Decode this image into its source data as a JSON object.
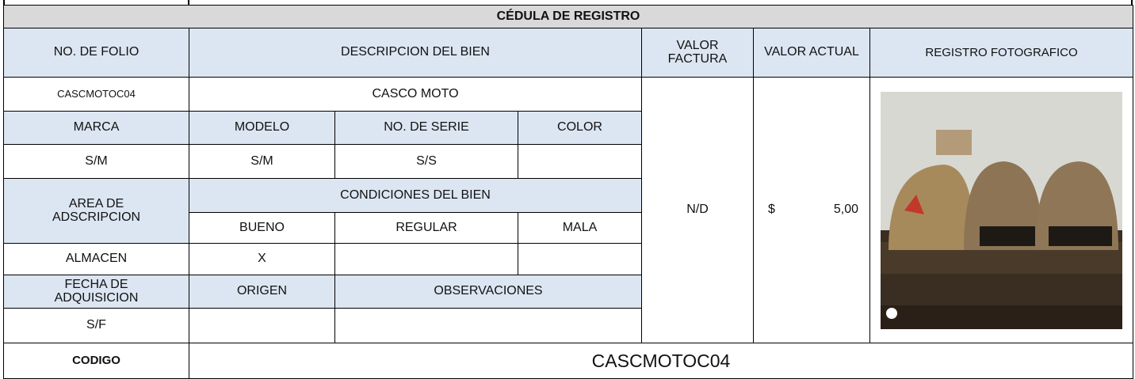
{
  "title": "CÉDULA DE REGISTRO",
  "headers": {
    "folio": "NO. DE FOLIO",
    "descripcion": "DESCRIPCION DEL BIEN",
    "valor_factura": "VALOR FACTURA",
    "valor_actual": "VALOR ACTUAL",
    "registro": "REGISTRO FOTOGRAFICO"
  },
  "item": {
    "folio": "CASCMOTOC04",
    "descripcion": "CASCO MOTO",
    "valor_factura": "N/D",
    "currency": "$",
    "valor_actual": "5,00"
  },
  "labels": {
    "marca": "MARCA",
    "modelo": "MODELO",
    "serie": "NO. DE SERIE",
    "color": "COLOR",
    "area": "AREA DE ADSCRIPCION",
    "condiciones": "CONDICIONES DEL BIEN",
    "bueno": "BUENO",
    "regular": "REGULAR",
    "mala": "MALA",
    "fecha": "FECHA DE ADQUISICION",
    "origen": "ORIGEN",
    "observaciones": "OBSERVACIONES",
    "codigo": "CODIGO"
  },
  "values": {
    "marca": "S/M",
    "modelo": "S/M",
    "serie": "S/S",
    "area": "ALMACEN",
    "bueno": "X",
    "fecha": "S/F"
  },
  "codigo": "CASCMOTOC04"
}
